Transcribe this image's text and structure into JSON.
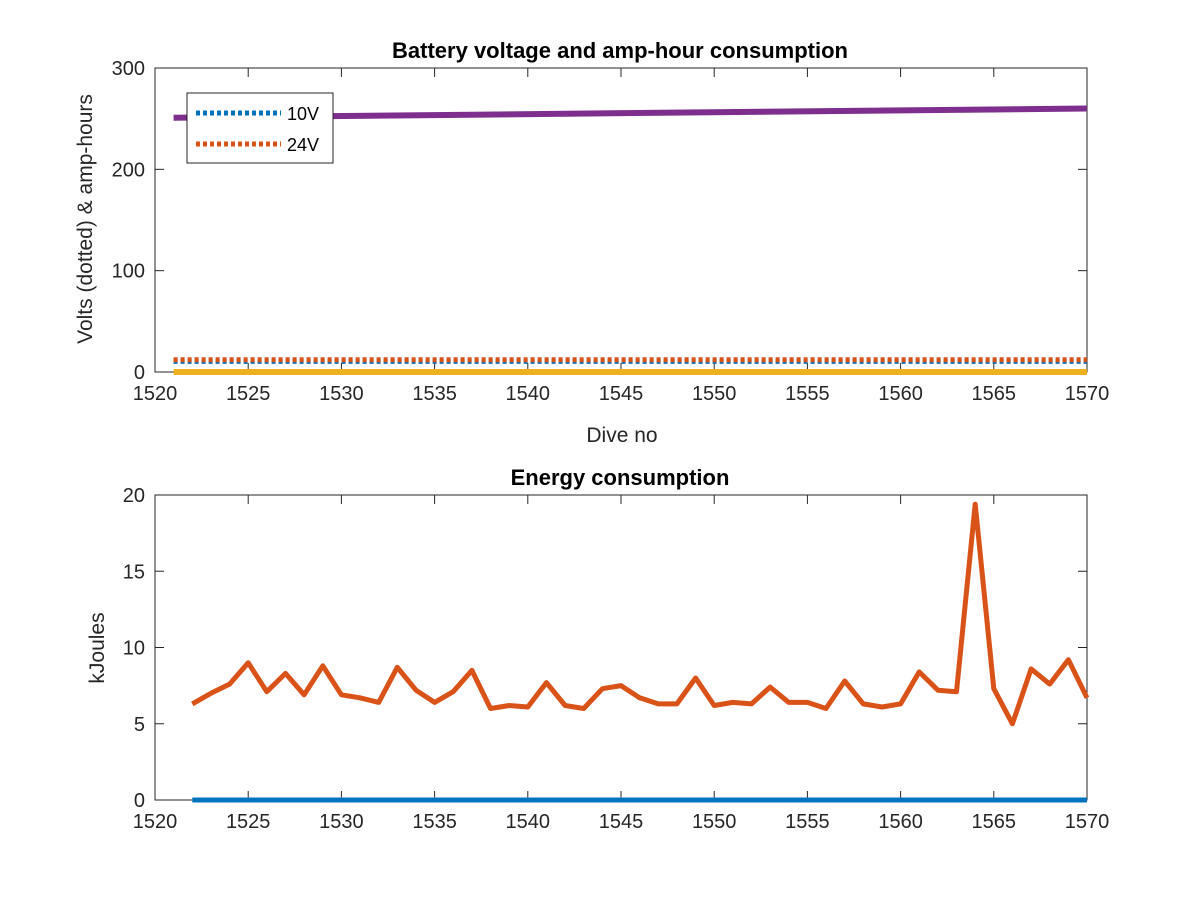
{
  "chart_data": [
    {
      "type": "line",
      "title": "Battery voltage and amp-hour consumption",
      "xlabel": "Dive no",
      "ylabel": "Volts (dotted) & amp-hours",
      "xlim": [
        1520,
        1570
      ],
      "ylim": [
        0,
        300
      ],
      "xticks": [
        1520,
        1525,
        1530,
        1535,
        1540,
        1545,
        1550,
        1555,
        1560,
        1565,
        1570
      ],
      "yticks": [
        0,
        100,
        200,
        300
      ],
      "legend": {
        "placement": "top-left",
        "entries": [
          "10V",
          "24V"
        ]
      },
      "series": [
        {
          "name": "10V",
          "style": "dotted",
          "color": "#0072BD",
          "x": [
            1521,
            1570
          ],
          "values": [
            10.5,
            10.5
          ]
        },
        {
          "name": "24V",
          "style": "dotted",
          "color": "#D95319",
          "x": [
            1521,
            1570
          ],
          "values": [
            12,
            12
          ]
        },
        {
          "style": "solid",
          "color": "#7E2F8E",
          "x": [
            1521,
            1570
          ],
          "values": [
            251,
            260
          ]
        },
        {
          "style": "solid",
          "color": "#EDB120",
          "x": [
            1521,
            1570
          ],
          "values": [
            0,
            0
          ]
        }
      ]
    },
    {
      "type": "line",
      "title": "Energy consumption",
      "xlabel": "",
      "ylabel": "kJoules",
      "xlim": [
        1520,
        1570
      ],
      "ylim": [
        0,
        20
      ],
      "xticks": [
        1520,
        1525,
        1530,
        1535,
        1540,
        1545,
        1550,
        1555,
        1560,
        1565,
        1570
      ],
      "yticks": [
        0,
        5,
        10,
        15,
        20
      ],
      "series": [
        {
          "style": "solid",
          "color": "#D95319",
          "x": [
            1522,
            1523,
            1524,
            1525,
            1526,
            1527,
            1528,
            1529,
            1530,
            1531,
            1532,
            1533,
            1534,
            1535,
            1536,
            1537,
            1538,
            1539,
            1540,
            1541,
            1542,
            1543,
            1544,
            1545,
            1546,
            1547,
            1548,
            1549,
            1550,
            1551,
            1552,
            1553,
            1554,
            1555,
            1556,
            1557,
            1558,
            1559,
            1560,
            1561,
            1562,
            1563,
            1564,
            1565,
            1566,
            1567,
            1568,
            1569,
            1570
          ],
          "values": [
            6.3,
            7.0,
            7.6,
            9.0,
            7.1,
            8.3,
            6.9,
            8.8,
            6.9,
            6.7,
            6.4,
            8.7,
            7.2,
            6.4,
            7.1,
            8.5,
            6.0,
            6.2,
            6.1,
            7.7,
            6.2,
            6.0,
            7.3,
            7.5,
            6.7,
            6.3,
            6.3,
            8.0,
            6.2,
            6.4,
            6.3,
            7.4,
            6.4,
            6.4,
            6.0,
            7.8,
            6.3,
            6.1,
            6.3,
            8.4,
            7.2,
            7.1,
            19.4,
            7.3,
            5.0,
            8.6,
            7.6,
            9.2,
            6.7
          ]
        },
        {
          "style": "solid",
          "color": "#0072BD",
          "x": [
            1522,
            1570
          ],
          "values": [
            0,
            0
          ]
        }
      ]
    }
  ]
}
